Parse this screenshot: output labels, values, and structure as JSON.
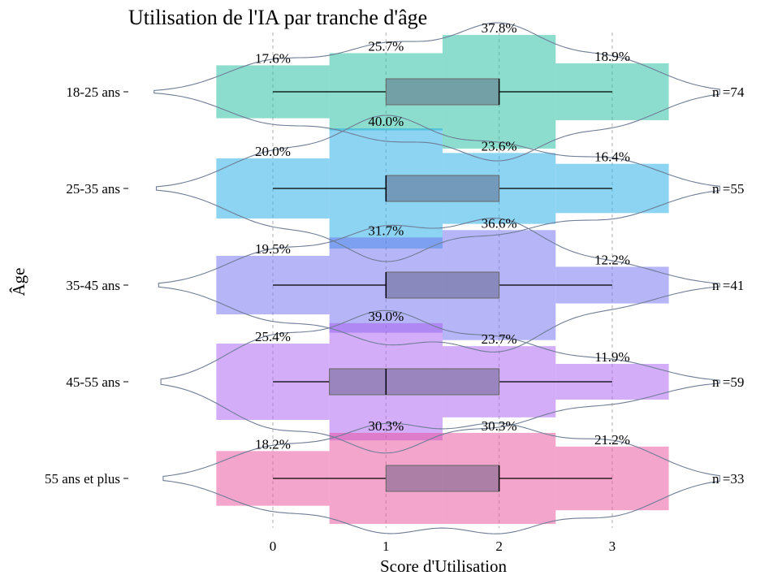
{
  "chart_data": {
    "type": "bar",
    "title": "Utilisation de l'IA par tranche d'âge",
    "xlabel": "Score d'Utilisation",
    "ylabel": "Âge",
    "xlim": [
      -0.5,
      3.5
    ],
    "xticks": [
      0,
      1,
      2,
      3
    ],
    "grid": "vertical dashed at x ticks",
    "categories": [
      0,
      1,
      2,
      3
    ],
    "groups": [
      {
        "label": "18-25 ans",
        "n_text": "n =74",
        "color": "#1abc9c",
        "percentages": [
          17.6,
          25.7,
          37.8,
          18.9
        ],
        "pct_labels": [
          "17.6%",
          "25.7%",
          "37.8%",
          "18.9%"
        ],
        "box": {
          "whisker_low": 0,
          "q1": 1,
          "median": 2,
          "q3": 2,
          "whisker_high": 3
        }
      },
      {
        "label": "25-35 ans",
        "n_text": "n =55",
        "color": "#1ba9e8",
        "percentages": [
          20.0,
          40.0,
          23.6,
          16.4
        ],
        "pct_labels": [
          "20.0%",
          "40.0%",
          "23.6%",
          "16.4%"
        ],
        "box": {
          "whisker_low": 0,
          "q1": 1,
          "median": 1,
          "q3": 2,
          "whisker_high": 3
        }
      },
      {
        "label": "35-45 ans",
        "n_text": "n =41",
        "color": "#6d6cef",
        "percentages": [
          19.5,
          31.7,
          36.6,
          12.2
        ],
        "pct_labels": [
          "19.5%",
          "31.7%",
          "36.6%",
          "12.2%"
        ],
        "box": {
          "whisker_low": 0,
          "q1": 1,
          "median": 1,
          "q3": 2,
          "whisker_high": 3
        }
      },
      {
        "label": "45-55 ans",
        "n_text": "n =59",
        "color": "#a85cf2",
        "percentages": [
          25.4,
          39.0,
          23.7,
          11.9
        ],
        "pct_labels": [
          "25.4%",
          "39.0%",
          "23.7%",
          "11.9%"
        ],
        "box": {
          "whisker_low": 0,
          "q1": 0.5,
          "median": 1,
          "q3": 2,
          "whisker_high": 3
        }
      },
      {
        "label": "55 ans et plus",
        "n_text": "n =33",
        "color": "#e94c9a",
        "percentages": [
          18.2,
          30.3,
          30.3,
          21.2
        ],
        "pct_labels": [
          "18.2%",
          "30.3%",
          "30.3%",
          "21.2%"
        ],
        "box": {
          "whisker_low": 0,
          "q1": 1,
          "median": 2,
          "q3": 2,
          "whisker_high": 3
        }
      }
    ]
  }
}
